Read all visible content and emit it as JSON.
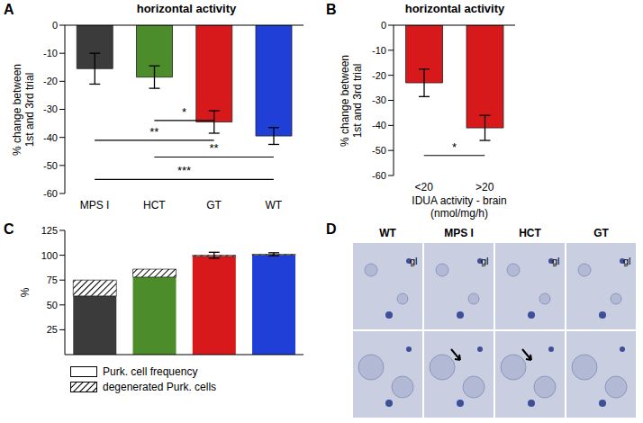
{
  "chart_data": [
    {
      "panel": "A",
      "type": "bar",
      "title": "horizontal activity",
      "y_label": [
        "% change between",
        "1st and 3rd trial"
      ],
      "categories": [
        "MPS I",
        "HCT",
        "GT",
        "WT"
      ],
      "values": [
        -15.5,
        -18.5,
        -34.5,
        -39.5
      ],
      "errors": [
        5.5,
        4,
        4,
        3
      ],
      "colors": [
        "#3b3b3b",
        "#4c8c2b",
        "#d7191c",
        "#1f3fd6"
      ],
      "ylim": [
        -60,
        0
      ],
      "yticks": [
        -60,
        -50,
        -40,
        -30,
        -20,
        -10,
        0
      ],
      "significance": [
        {
          "from": "HCT",
          "to": "GT",
          "label": "*",
          "y": -34
        },
        {
          "from": "MPS I",
          "to": "GT",
          "label": "**",
          "y": -41
        },
        {
          "from": "HCT",
          "to": "WT",
          "label": "**",
          "y": -47
        },
        {
          "from": "MPS I",
          "to": "WT",
          "label": "***",
          "y": -55
        }
      ]
    },
    {
      "panel": "B",
      "type": "bar",
      "title": "horizontal activity",
      "y_label": [
        "% change between",
        "1st and 3rd trial"
      ],
      "x_label": [
        "IDUA activity - brain",
        "(nmol/mg/h)"
      ],
      "categories": [
        "<20",
        ">20"
      ],
      "values": [
        -23,
        -41
      ],
      "errors": [
        5.5,
        5
      ],
      "color": "#d7191c",
      "ylim": [
        -60,
        0
      ],
      "yticks": [
        -60,
        -50,
        -40,
        -30,
        -20,
        -10,
        0
      ],
      "significance": [
        {
          "from": "<20",
          "to": ">20",
          "label": "*",
          "y": -52
        }
      ]
    },
    {
      "panel": "C",
      "type": "bar",
      "stacked": true,
      "y_label": "%",
      "categories": [
        null,
        null,
        null,
        null
      ],
      "tick_labels": "y",
      "ylim": [
        0,
        125
      ],
      "yticks": [
        0,
        25,
        50,
        75,
        100,
        125
      ],
      "series": [
        {
          "name": "Purk. cell frequency",
          "colors": [
            "#3b3b3b",
            "#4c8c2b",
            "#d7191c",
            "#1f3fd6"
          ],
          "values": [
            59,
            78,
            99,
            100
          ]
        },
        {
          "name": "degenerated Purk. cells",
          "color": "#000000",
          "values": [
            16,
            8,
            1,
            1
          ],
          "errors": [
            null,
            null,
            3,
            1.5
          ]
        }
      ]
    }
  ],
  "image_panel": {
    "panel": "D",
    "columns": [
      "WT",
      "MPS I",
      "HCT",
      "GT"
    ],
    "labels": [
      "gl",
      "gl",
      "gl",
      "gl"
    ]
  }
}
